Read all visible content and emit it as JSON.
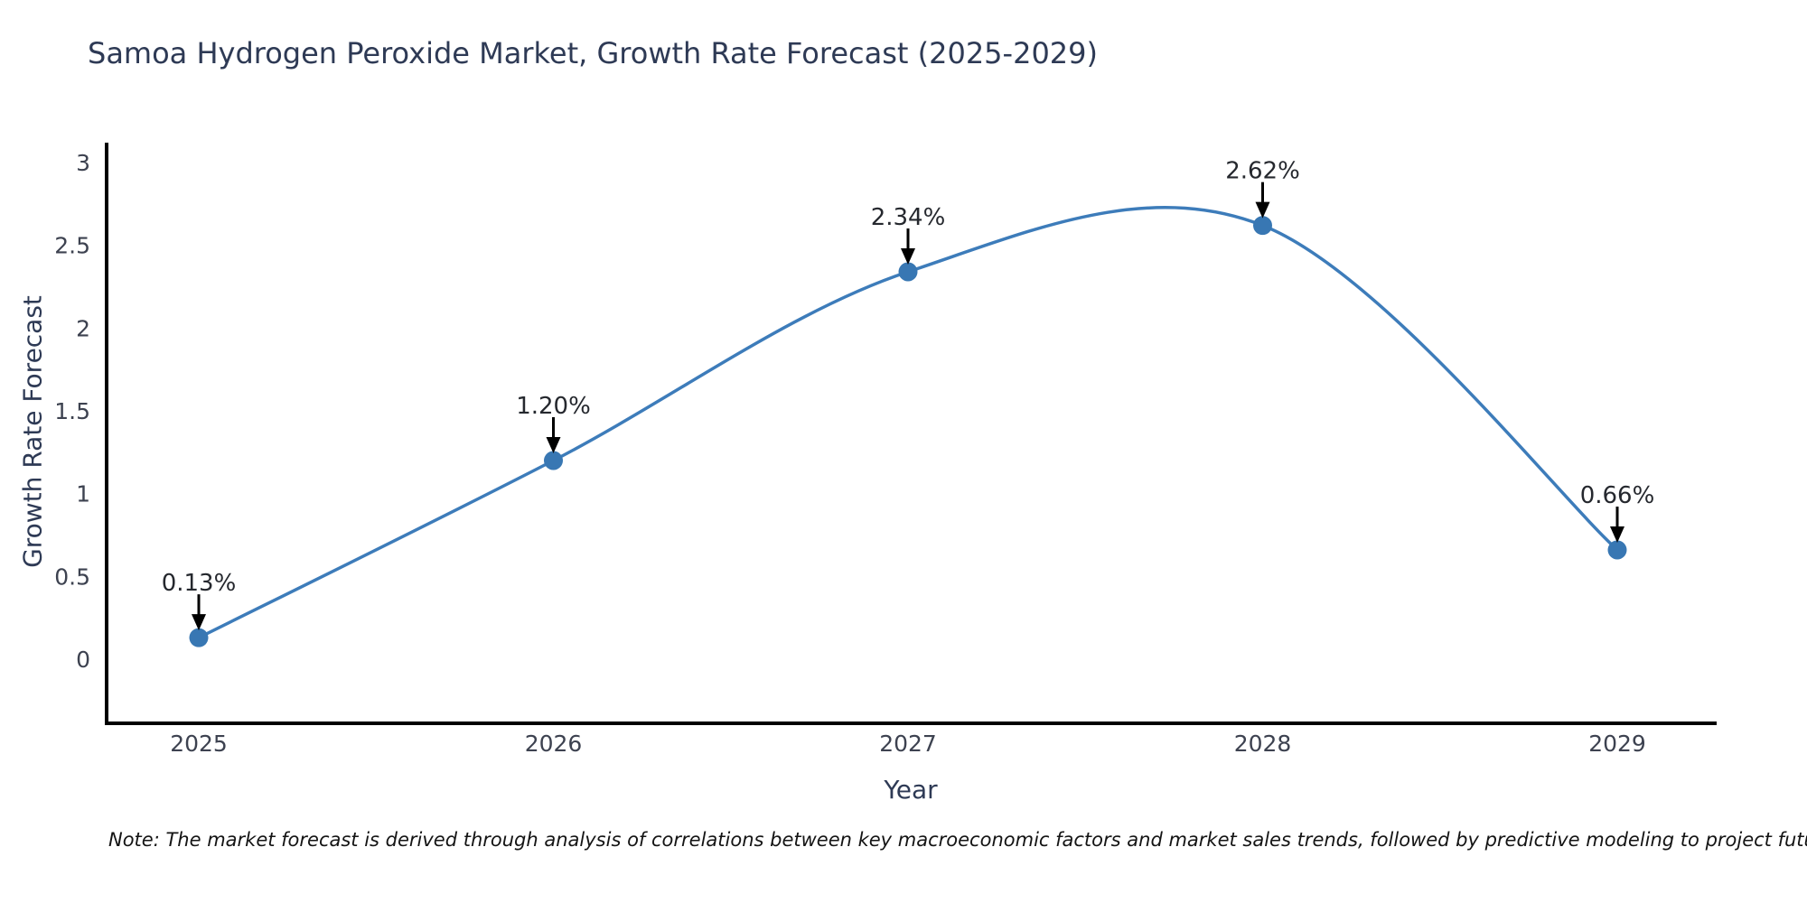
{
  "title": "Samoa Hydrogen Peroxide Market, Growth Rate Forecast (2025-2029)",
  "note": "Note: The market forecast is derived through analysis of correlations between key macroeconomic factors and market sales trends, followed by predictive modeling to project future sales",
  "chart_data": {
    "type": "line",
    "title": "Samoa Hydrogen Peroxide Market, Growth Rate Forecast (2025-2029)",
    "x": [
      "2025",
      "2026",
      "2027",
      "2028",
      "2029"
    ],
    "values": [
      0.13,
      1.2,
      2.34,
      2.62,
      0.66
    ],
    "point_labels": [
      "0.13%",
      "1.20%",
      "2.34%",
      "2.62%",
      "0.66%"
    ],
    "xlabel": "Year",
    "ylabel": "Growth Rate Forecast",
    "yticks": [
      "0",
      "0.5",
      "1",
      "1.5",
      "2",
      "2.5",
      "3"
    ],
    "ytick_values": [
      0,
      0.5,
      1,
      1.5,
      2,
      2.5,
      3
    ],
    "ylim": [
      -0.39,
      3.12
    ],
    "smooth": true,
    "grid": false,
    "legend": "none",
    "annotations": "value labels with black arrows above each point",
    "colors": {
      "line": "#3d7cba",
      "marker": "#3877b3",
      "arrow": "#000000",
      "axis_spine": "#000000",
      "title_text": "#2e3a55",
      "tick_text": "#3d4250",
      "note_text": "#141414",
      "background": "#ffffff"
    }
  }
}
